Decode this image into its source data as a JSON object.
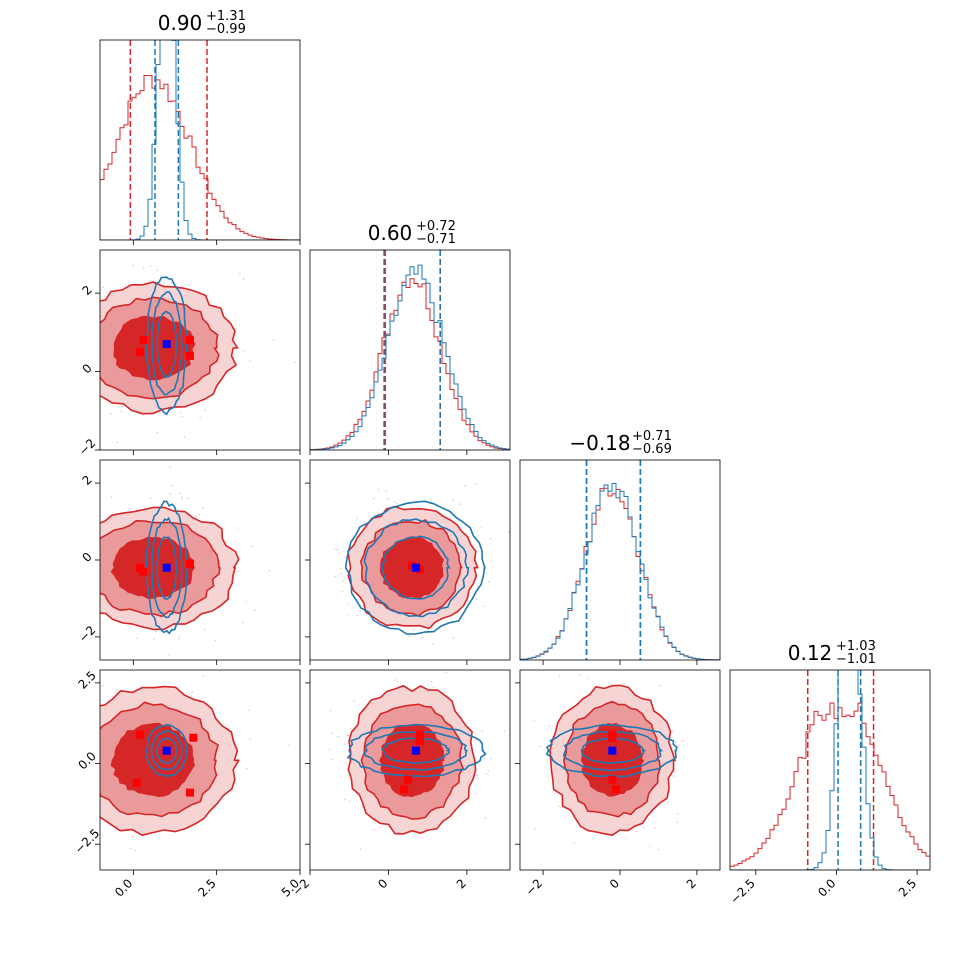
{
  "colors": {
    "red": "#d62728",
    "blue": "#1f77b4",
    "red_mid": "#ea9a9b",
    "red_light": "#f6d4d4",
    "marker_red": "#ff0000",
    "marker_blue": "#0000ff"
  },
  "chart_data": {
    "type": "corner",
    "n_params": 4,
    "titles": [
      {
        "value": "0.90",
        "plus": "+1.31",
        "minus": "−0.99"
      },
      {
        "value": "0.60",
        "plus": "+0.72",
        "minus": "−0.71"
      },
      {
        "value": "−0.18",
        "plus": "+0.71",
        "minus": "−0.69"
      },
      {
        "value": "0.12",
        "plus": "+1.03",
        "minus": "−1.01"
      }
    ],
    "ranges": [
      [
        -1.0,
        5.0
      ],
      [
        -2.0,
        3.1
      ],
      [
        -2.6,
        2.6
      ],
      [
        -3.3,
        2.9
      ]
    ],
    "ticks": [
      {
        "values": [
          0.0,
          2.5,
          5.0
        ],
        "labels": [
          "0.0",
          "2.5",
          "5.0"
        ]
      },
      {
        "values": [
          -2,
          0,
          2
        ],
        "labels": [
          "−2",
          "0",
          "2"
        ]
      },
      {
        "values": [
          -2,
          0,
          2
        ],
        "labels": [
          "−2",
          "0",
          "2"
        ]
      },
      {
        "values": [
          -2.5,
          0.0,
          2.5
        ],
        "labels": [
          "−2.5",
          "0.0",
          "2.5"
        ]
      }
    ],
    "series": [
      {
        "name": "",
        "color": "#d62728",
        "centers": [
          0.6,
          0.6,
          -0.2,
          0.1
        ],
        "sigmas": [
          1.1,
          0.72,
          0.7,
          1.0
        ],
        "quantiles": [
          [
            -0.09,
            2.21
          ],
          [
            -0.11,
            1.32
          ],
          [
            -0.87,
            0.53
          ],
          [
            -0.89,
            1.15
          ]
        ]
      },
      {
        "name": "",
        "color": "#1f77b4",
        "centers": [
          1.0,
          0.7,
          -0.2,
          0.4
        ],
        "sigmas": [
          0.25,
          0.72,
          0.7,
          0.33
        ],
        "quantiles": [
          [
            0.65,
            1.35
          ],
          [
            -0.08,
            1.32
          ],
          [
            -0.87,
            0.53
          ],
          [
            0.05,
            0.75
          ]
        ]
      }
    ],
    "markers_red": [
      [
        [
          0.2,
          0.5
        ],
        [
          0.3,
          0.8
        ],
        [
          1.7,
          0.8
        ],
        [
          1.7,
          0.4
        ]
      ],
      [
        [
          0.2,
          -0.2
        ],
        [
          0.3,
          -0.3
        ],
        [
          1.7,
          -0.1
        ]
      ],
      [
        [
          0.6,
          -0.15
        ],
        [
          0.8,
          -0.25
        ]
      ],
      [
        [
          0.2,
          0.9
        ],
        [
          0.1,
          -0.6
        ],
        [
          1.8,
          0.8
        ],
        [
          1.7,
          -0.9
        ]
      ],
      [
        [
          0.8,
          0.9
        ],
        [
          0.8,
          0.7
        ],
        [
          0.5,
          -0.5
        ],
        [
          0.4,
          -0.8
        ]
      ],
      [
        [
          -0.2,
          0.9
        ],
        [
          -0.2,
          0.8
        ],
        [
          -0.2,
          -0.5
        ],
        [
          -0.1,
          -0.8
        ]
      ]
    ],
    "markers_blue": [
      [
        1.0,
        0.7
      ],
      [
        1.0,
        -0.2
      ],
      [
        0.7,
        -0.2
      ],
      [
        1.0,
        0.4
      ],
      [
        0.7,
        0.4
      ],
      [
        -0.2,
        0.4
      ]
    ],
    "grid": false,
    "legend": "none"
  }
}
